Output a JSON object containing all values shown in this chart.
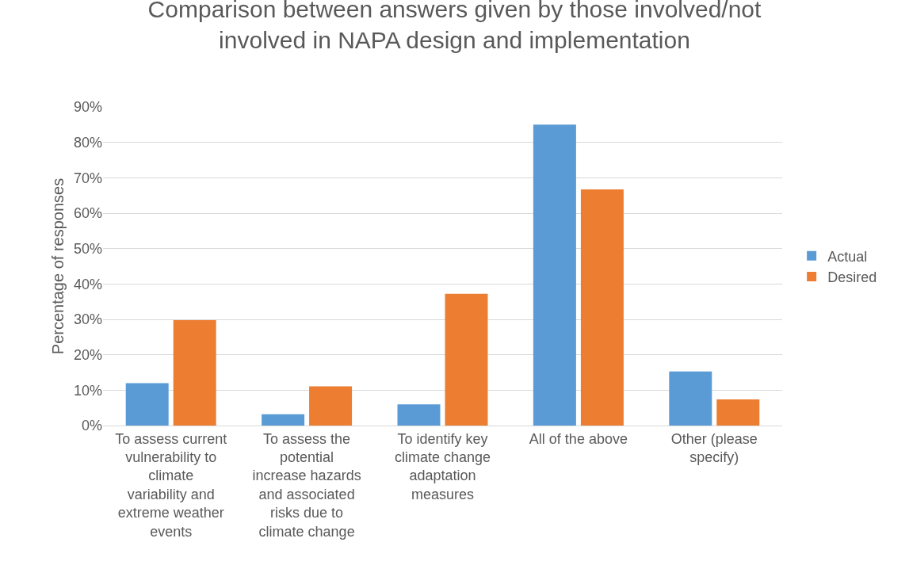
{
  "chart_data": {
    "type": "bar",
    "title": "Comparison between answers given by those involved/not involved in NAPA design and implementation",
    "ylabel": "Percentage of responses",
    "categories": [
      "To assess current vulnerability to climate variability and extreme weather events",
      "To assess the potential increase hazards and associated risks due to climate change",
      "To identify key climate change adaptation measures",
      "All of the above",
      "Other (please specify)"
    ],
    "series": [
      {
        "name": "Actual",
        "color": "#5b9bd5",
        "values": [
          12,
          3.2,
          6,
          85,
          15.3
        ]
      },
      {
        "name": "Desired",
        "color": "#ed7d31",
        "values": [
          29.8,
          11.1,
          37.2,
          66.7,
          7.4
        ]
      }
    ],
    "ylim": [
      0,
      90
    ],
    "yticks": [
      {
        "value": 0,
        "label": "0%"
      },
      {
        "value": 10,
        "label": "10%"
      },
      {
        "value": 20,
        "label": "20%"
      },
      {
        "value": 30,
        "label": "30%"
      },
      {
        "value": 40,
        "label": "40%"
      },
      {
        "value": 50,
        "label": "50%"
      },
      {
        "value": 60,
        "label": "60%"
      },
      {
        "value": 70,
        "label": "70%"
      },
      {
        "value": 80,
        "label": "80%"
      },
      {
        "value": 90,
        "label": "90%"
      }
    ],
    "grid": "y",
    "legend": "right"
  }
}
